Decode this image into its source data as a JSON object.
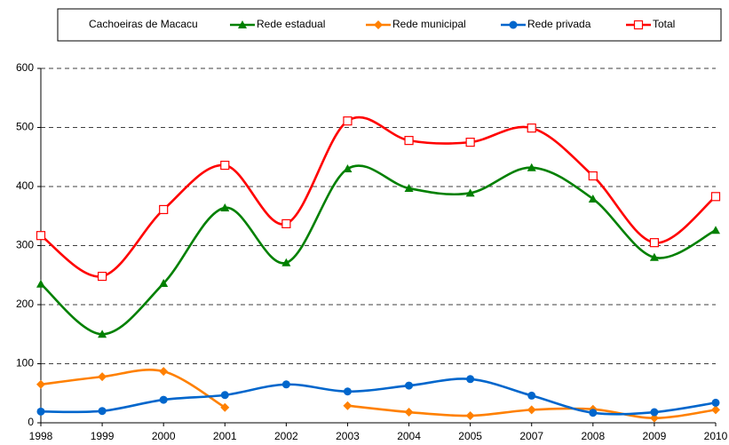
{
  "chart_data": {
    "type": "line",
    "legend_title": "Cachoeiras de Macacu",
    "categories": [
      "1998",
      "1999",
      "2000",
      "2001",
      "2002",
      "2003",
      "2004",
      "2005",
      "2007",
      "2008",
      "2009",
      "2010"
    ],
    "series": [
      {
        "name": "Rede estadual",
        "color": "#008000",
        "marker": "triangle",
        "values": [
          235,
          150,
          236,
          364,
          271,
          430,
          397,
          389,
          432,
          379,
          280,
          326
        ]
      },
      {
        "name": "Rede municipal",
        "color": "#ff8000",
        "marker": "diamond",
        "values": [
          65,
          78,
          87,
          26,
          null,
          29,
          18,
          12,
          22,
          23,
          8,
          22
        ]
      },
      {
        "name": "Rede privada",
        "color": "#0066cc",
        "marker": "circle",
        "values": [
          19,
          20,
          39,
          47,
          65,
          53,
          63,
          74,
          46,
          17,
          18,
          34
        ]
      },
      {
        "name": "Total",
        "color": "#ff0000",
        "marker": "square",
        "values": [
          317,
          248,
          361,
          436,
          337,
          511,
          478,
          475,
          499,
          418,
          305,
          383
        ]
      }
    ],
    "ylim": [
      0,
      600
    ],
    "yticks": [
      0,
      100,
      200,
      300,
      400,
      500,
      600
    ],
    "grid": true,
    "legend": "top"
  }
}
